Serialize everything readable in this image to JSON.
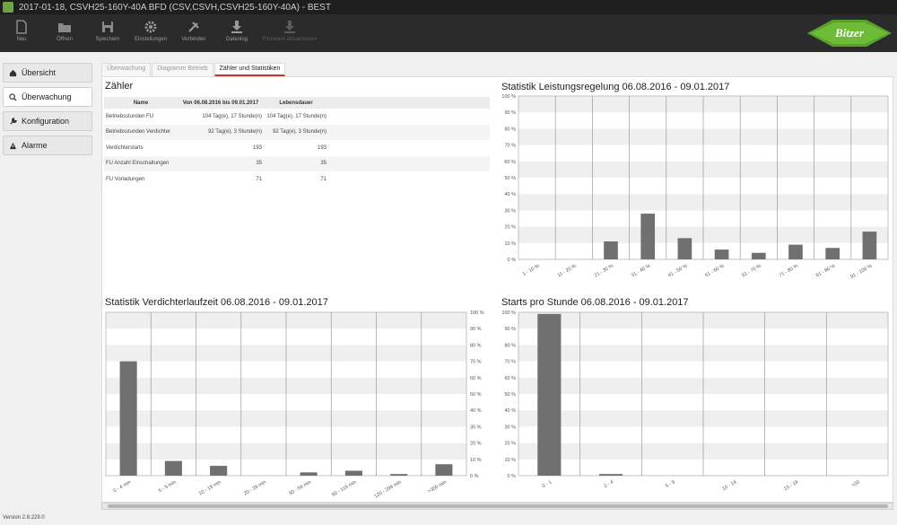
{
  "window": {
    "title": "2017-01-18, CSVH25-160Y-40A BFD (CSV,CSVH,CSVH25-160Y-40A) - BEST"
  },
  "toolbar": {
    "buttons": [
      {
        "label": "Neu",
        "icon": "new-file-icon"
      },
      {
        "label": "Öffnen",
        "icon": "folder-icon"
      },
      {
        "label": "Speichern",
        "icon": "save-icon"
      },
      {
        "label": "Einstellungen",
        "icon": "gear-icon"
      },
      {
        "label": "Verbinden",
        "icon": "plug-icon"
      },
      {
        "label": "Datenlog",
        "icon": "download-icon"
      },
      {
        "label": "Firmware aktualisieren",
        "icon": "firmware-icon"
      }
    ]
  },
  "brand": {
    "logo_text": "Bitzer",
    "color": "#5aa02c"
  },
  "sidebar": {
    "items": [
      {
        "label": "Übersicht",
        "icon": "home-icon"
      },
      {
        "label": "Überwachung",
        "icon": "search-icon"
      },
      {
        "label": "Konfiguration",
        "icon": "wrench-icon"
      },
      {
        "label": "Alarme",
        "icon": "warning-icon"
      }
    ]
  },
  "tabs": [
    {
      "label": "Überwachung"
    },
    {
      "label": "Diagramm Betrieb"
    },
    {
      "label": "Zähler und Statistiken"
    }
  ],
  "counters": {
    "title": "Zähler",
    "headers": [
      "Name",
      "Von 06.08.2016 bis 09.01.2017",
      "Lebensdauer"
    ],
    "rows": [
      [
        "Betriebsstunden FU",
        "104 Tag(e), 17 Stunde(n)",
        "104 Tag(e), 17 Stunde(n)"
      ],
      [
        "Betriebsstunden Verdichter",
        "92 Tag(e), 3 Stunde(n)",
        "92 Tag(e), 3 Stunde(n)"
      ],
      [
        "Verdichterstarts",
        "193",
        "193"
      ],
      [
        "FU Anzahl Einschaltungen",
        "35",
        "35"
      ],
      [
        "FU Vorladungen",
        "71",
        "71"
      ]
    ]
  },
  "chart_data": [
    {
      "type": "bar",
      "title": "Statistik Leistungsregelung 06.08.2016 - 09.01.2017",
      "categories": [
        "1 - 10 %",
        "11 - 20 %",
        "21 - 30 %",
        "31 - 40 %",
        "41 - 50 %",
        "51 - 60 %",
        "61 - 70 %",
        "71 - 80 %",
        "81 - 90 %",
        "91 - 100 %"
      ],
      "values": [
        0,
        0,
        11,
        28,
        13,
        6,
        4,
        9,
        7,
        17
      ],
      "ylim": [
        0,
        100
      ],
      "yticks": [
        "0 %",
        "10 %",
        "20 %",
        "30 %",
        "40 %",
        "50 %",
        "60 %",
        "70 %",
        "80 %",
        "90 %",
        "100 %"
      ],
      "y_axis_side": "left",
      "grid": true,
      "bar_color": "#707070"
    },
    {
      "type": "bar",
      "title": "Statistik Verdichterlaufzeit 06.08.2016 - 09.01.2017",
      "categories": [
        "0 - 4 min",
        "5 - 9 min",
        "10 - 19 min",
        "20 - 29 min",
        "30 - 59 min",
        "60 - 119 min",
        "120 - 299 min",
        ">300 min"
      ],
      "values": [
        70,
        9,
        6,
        0,
        2,
        3,
        1,
        7
      ],
      "ylim": [
        0,
        100
      ],
      "yticks": [
        "0 %",
        "10 %",
        "20 %",
        "30 %",
        "40 %",
        "50 %",
        "60 %",
        "70 %",
        "80 %",
        "90 %",
        "100 %"
      ],
      "y_axis_side": "right",
      "grid": true,
      "bar_color": "#707070"
    },
    {
      "type": "bar",
      "title": "Starts pro Stunde 06.08.2016 - 09.01.2017",
      "categories": [
        "0 - 1",
        "2 - 4",
        "5 - 9",
        "10 - 14",
        "15 - 19",
        ">20"
      ],
      "values": [
        99,
        1,
        0,
        0,
        0,
        0
      ],
      "ylim": [
        0,
        100
      ],
      "yticks": [
        "0 %",
        "10 %",
        "20 %",
        "30 %",
        "40 %",
        "50 %",
        "60 %",
        "70 %",
        "80 %",
        "90 %",
        "100 %"
      ],
      "y_axis_side": "left",
      "grid": true,
      "bar_color": "#707070"
    }
  ],
  "status": {
    "version": "Version 2.8.229.0"
  }
}
